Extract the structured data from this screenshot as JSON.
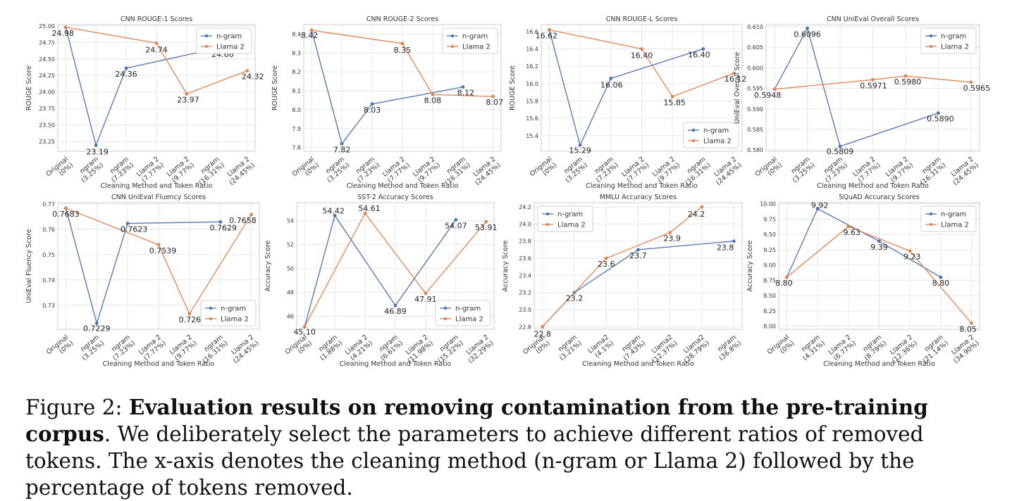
{
  "figure": {
    "caption_label": "Figure 2:",
    "caption_bold": "Evaluation results on removing contamination from the pre-training corpus",
    "caption_rest": ". We deliberately select the parameters to achieve different ratios of removed tokens. The x-axis denotes the cleaning method (n-gram or Llama 2) followed by the percentage of tokens removed."
  },
  "colors": {
    "ngram": "#4c72b0",
    "llama": "#dd8452",
    "grid": "#e6e6e6",
    "axis": "#cccccc",
    "text": "#333333"
  },
  "chart_data": [
    {
      "type": "line",
      "title": "CNN ROUGE-1 Scores",
      "xlabel": "Cleaning Method and Token Ratio",
      "ylabel": "ROUGE Score",
      "categories": [
        "Original\n(0%)",
        "ngram\n(3.25%)",
        "ngram\n(7.23%)",
        "Llama 2\n(7.77%)",
        "Llama 2\n(9.77%)",
        "ngram\n(16.31%)",
        "Llama 2\n(24.45%)"
      ],
      "ylim": [
        23.1,
        25.02
      ],
      "yticks": [
        "23.25",
        "23.50",
        "23.75",
        "24.00",
        "24.25",
        "24.50",
        "24.75",
        "25.00"
      ],
      "legend": "top-right",
      "series": [
        {
          "name": "n-gram",
          "points": [
            [
              0,
              24.98
            ],
            [
              1,
              23.19
            ],
            [
              2,
              24.36
            ],
            [
              5,
              24.66
            ]
          ]
        },
        {
          "name": "Llama 2",
          "points": [
            [
              0,
              24.98
            ],
            [
              3,
              24.74
            ],
            [
              4,
              23.97
            ],
            [
              6,
              24.32
            ]
          ]
        }
      ],
      "annotations": [
        {
          "x": 0,
          "y": 24.98,
          "text": "24.98"
        },
        {
          "x": 1,
          "y": 23.19,
          "text": "23.19"
        },
        {
          "x": 2,
          "y": 24.36,
          "text": "24.36"
        },
        {
          "x": 3,
          "y": 24.74,
          "text": "24.74"
        },
        {
          "x": 4,
          "y": 23.97,
          "text": "23.97"
        },
        {
          "x": 5,
          "y": 24.66,
          "text": "24.66"
        },
        {
          "x": 6,
          "y": 24.32,
          "text": "24.32"
        }
      ]
    },
    {
      "type": "line",
      "title": "CNN ROUGE-2 Scores",
      "xlabel": "Cleaning Method and Token Ratio",
      "ylabel": "ROUGE Score",
      "categories": [
        "Original\n(0%)",
        "ngram\n(3.25%)",
        "ngram\n(7.23%)",
        "Llama 2\n(7.77%)",
        "Llama 2\n(9.77%)",
        "ngram\n(16.31%)",
        "Llama 2\n(24.45%)"
      ],
      "ylim": [
        7.78,
        8.45
      ],
      "yticks": [
        "7.8",
        "7.9",
        "8.0",
        "8.1",
        "8.2",
        "8.3",
        "8.4"
      ],
      "legend": "top-right",
      "series": [
        {
          "name": "n-gram",
          "points": [
            [
              0,
              8.42
            ],
            [
              1,
              7.82
            ],
            [
              2,
              8.03
            ],
            [
              5,
              8.12
            ]
          ]
        },
        {
          "name": "Llama 2",
          "points": [
            [
              0,
              8.42
            ],
            [
              3,
              8.35
            ],
            [
              4,
              8.08
            ],
            [
              6,
              8.07
            ]
          ]
        }
      ],
      "annotations": [
        {
          "x": 0,
          "y": 8.42,
          "text": "8.42"
        },
        {
          "x": 1,
          "y": 7.82,
          "text": "7.82"
        },
        {
          "x": 2,
          "y": 8.03,
          "text": "8.03"
        },
        {
          "x": 3,
          "y": 8.35,
          "text": "8.35"
        },
        {
          "x": 4,
          "y": 8.08,
          "text": "8.08"
        },
        {
          "x": 5,
          "y": 8.12,
          "text": "8.12"
        },
        {
          "x": 6,
          "y": 8.07,
          "text": "8.07"
        }
      ]
    },
    {
      "type": "line",
      "title": "CNN ROUGE-L Scores",
      "xlabel": "Cleaning Method and Token Ratio",
      "ylabel": "ROUGE Score",
      "categories": [
        "Original\n(0%)",
        "ngram\n(3.25%)",
        "ngram\n(7.23%)",
        "Llama 2\n(7.77%)",
        "Llama 2\n(9.77%)",
        "ngram\n(16.31%)",
        "Llama 2\n(24.45%)"
      ],
      "ylim": [
        15.22,
        16.68
      ],
      "yticks": [
        "15.4",
        "15.6",
        "15.8",
        "16.0",
        "16.2",
        "16.4",
        "16.6"
      ],
      "legend": "bottom-right",
      "series": [
        {
          "name": "n-gram",
          "points": [
            [
              0,
              16.62
            ],
            [
              1,
              15.29
            ],
            [
              2,
              16.06
            ],
            [
              5,
              16.4
            ]
          ]
        },
        {
          "name": "Llama 2",
          "points": [
            [
              0,
              16.62
            ],
            [
              3,
              16.4
            ],
            [
              4,
              15.85
            ],
            [
              6,
              16.12
            ]
          ]
        }
      ],
      "annotations": [
        {
          "x": 0,
          "y": 16.62,
          "text": "16.62"
        },
        {
          "x": 1,
          "y": 15.29,
          "text": "15.29"
        },
        {
          "x": 2,
          "y": 16.06,
          "text": "16.06"
        },
        {
          "x": 3,
          "y": 16.4,
          "text": "16.40"
        },
        {
          "x": 4,
          "y": 15.85,
          "text": "15.85"
        },
        {
          "x": 5,
          "y": 16.4,
          "text": "16.40"
        },
        {
          "x": 6,
          "y": 16.12,
          "text": "16.12"
        }
      ]
    },
    {
      "type": "line",
      "title": "CNN UniEval Overall Scores",
      "xlabel": "Cleaning Method and Token Ratio",
      "ylabel": "UniEval Overall Score",
      "categories": [
        "Original\n(0%)",
        "ngram\n(3.25%)",
        "ngram\n(7.23%)",
        "Llama 2\n(7.77%)",
        "Llama 2\n(9.77%)",
        "ngram\n(16.31%)",
        "Llama 2\n(24.45%)"
      ],
      "ylim": [
        0.5797,
        0.6105
      ],
      "yticks": [
        "0.580",
        "0.585",
        "0.590",
        "0.595",
        "0.600",
        "0.605",
        "0.610"
      ],
      "legend": "top-right",
      "series": [
        {
          "name": "n-gram",
          "points": [
            [
              0,
              0.5948
            ],
            [
              1,
              0.6096
            ],
            [
              2,
              0.5809
            ],
            [
              5,
              0.589
            ]
          ]
        },
        {
          "name": "Llama 2",
          "points": [
            [
              0,
              0.5948
            ],
            [
              3,
              0.5971
            ],
            [
              4,
              0.598
            ],
            [
              6,
              0.5965
            ]
          ]
        }
      ],
      "annotations": [
        {
          "x": 0,
          "y": 0.5948,
          "text": "0.5948"
        },
        {
          "x": 1,
          "y": 0.6096,
          "text": "0.6096"
        },
        {
          "x": 2,
          "y": 0.5809,
          "text": "0.5809"
        },
        {
          "x": 3,
          "y": 0.5971,
          "text": "0.5971"
        },
        {
          "x": 4,
          "y": 0.598,
          "text": "0.5980"
        },
        {
          "x": 5,
          "y": 0.589,
          "text": "0.5890"
        },
        {
          "x": 6,
          "y": 0.5965,
          "text": "0.5965"
        }
      ]
    },
    {
      "type": "line",
      "title": "CNN UniEval Fluency Scores",
      "xlabel": "Cleaning Method and Token Ratio",
      "ylabel": "UniEval Fluency Score",
      "categories": [
        "Original\n(0%)",
        "ngram\n(3.25%)",
        "ngram\n(7.23%)",
        "Llama 2\n(7.77%)",
        "Llama 2\n(9.77%)",
        "ngram\n(16.31%)",
        "Llama 2\n(24.45%)"
      ],
      "ylim": [
        0.7205,
        0.7705
      ],
      "yticks": [
        "0.73",
        "0.74",
        "0.75",
        "0.76",
        "0.77"
      ],
      "legend": "bottom-right",
      "series": [
        {
          "name": "n-gram",
          "points": [
            [
              0,
              0.7683
            ],
            [
              1,
              0.7229
            ],
            [
              2,
              0.7623
            ],
            [
              5,
              0.7629
            ]
          ]
        },
        {
          "name": "Llama 2",
          "points": [
            [
              0,
              0.7683
            ],
            [
              3,
              0.7539
            ],
            [
              4,
              0.7266
            ],
            [
              6,
              0.7658
            ]
          ]
        }
      ],
      "annotations": [
        {
          "x": 0,
          "y": 0.7683,
          "text": "0.7683"
        },
        {
          "x": 1,
          "y": 0.7229,
          "text": "0.7229"
        },
        {
          "x": 2,
          "y": 0.7623,
          "text": "0.7623"
        },
        {
          "x": 3,
          "y": 0.7539,
          "text": "0.7539"
        },
        {
          "x": 4,
          "y": 0.7266,
          "text": "0.7266"
        },
        {
          "x": 5,
          "y": 0.7629,
          "text": "0.7629"
        },
        {
          "x": 6,
          "y": 0.7658,
          "text": "0.7658"
        }
      ]
    },
    {
      "type": "line",
      "title": "SST-2 Accuracy Scores",
      "xlabel": "Cleaning Method and Token Ratio",
      "ylabel": "Accuracy Score",
      "categories": [
        "Original\n(0%)",
        "ngram\n(1.88%)",
        "Llama 2\n(4.21%)",
        "ngram\n(6.61%)",
        "Llama 2\n(11.98%)",
        "ngram\n(15.22%)",
        "Llama 2\n(32.29%)"
      ],
      "ylim": [
        44.9,
        55.5
      ],
      "yticks": [
        "46",
        "48",
        "50",
        "52",
        "54"
      ],
      "legend": "bottom-right",
      "series": [
        {
          "name": "n-gram",
          "points": [
            [
              0,
              45.1
            ],
            [
              1,
              54.42
            ],
            [
              3,
              46.89
            ],
            [
              5,
              54.07
            ]
          ]
        },
        {
          "name": "Llama 2",
          "points": [
            [
              0,
              45.1
            ],
            [
              2,
              54.61
            ],
            [
              4,
              47.91
            ],
            [
              6,
              53.91
            ]
          ]
        }
      ],
      "annotations": [
        {
          "x": 0,
          "y": 45.1,
          "text": "45.10"
        },
        {
          "x": 1,
          "y": 54.42,
          "text": "54.42"
        },
        {
          "x": 2,
          "y": 54.61,
          "text": "54.61"
        },
        {
          "x": 3,
          "y": 46.89,
          "text": "46.89"
        },
        {
          "x": 4,
          "y": 47.91,
          "text": "47.91"
        },
        {
          "x": 5,
          "y": 54.07,
          "text": "54.07"
        },
        {
          "x": 6,
          "y": 53.91,
          "text": "53.91"
        }
      ]
    },
    {
      "type": "line",
      "title": "MMLU Accuracy Scores",
      "xlabel": "Cleaning Method and Token Ratio",
      "ylabel": "Accuracy Score",
      "categories": [
        "Original\n(0%)",
        "ngram\n(3.21%)",
        "Llama2\n(4.1%)",
        "ngram\n(7.43%)",
        "Llama2\n(12.37%)",
        "Llama2\n(28.79%)",
        "ngram\n(36.8%)"
      ],
      "ylim": [
        22.77,
        24.25
      ],
      "yticks": [
        "22.8",
        "23.0",
        "23.2",
        "23.4",
        "23.6",
        "23.8",
        "24.0",
        "24.2"
      ],
      "legend": "top-left",
      "series": [
        {
          "name": "n-gram",
          "points": [
            [
              0,
              22.8
            ],
            [
              1,
              23.2
            ],
            [
              3,
              23.7
            ],
            [
              6,
              23.8
            ]
          ]
        },
        {
          "name": "Llama 2",
          "points": [
            [
              0,
              22.8
            ],
            [
              2,
              23.6
            ],
            [
              4,
              23.9
            ],
            [
              5,
              24.2
            ]
          ]
        }
      ],
      "annotations": [
        {
          "x": 0,
          "y": 22.8,
          "text": "22.8"
        },
        {
          "x": 1,
          "y": 23.2,
          "text": "23.2"
        },
        {
          "x": 2,
          "y": 23.6,
          "text": "23.6"
        },
        {
          "x": 3,
          "y": 23.7,
          "text": "23.7"
        },
        {
          "x": 4,
          "y": 23.9,
          "text": "23.9"
        },
        {
          "x": 5,
          "y": 24.2,
          "text": "24.2"
        },
        {
          "x": 6,
          "y": 23.8,
          "text": "23.8"
        }
      ]
    },
    {
      "type": "line",
      "title": "SQuAD Accuracy Scores",
      "xlabel": "Cleaning Method and Token Ratio",
      "ylabel": "Accuracy Score",
      "categories": [
        "Original\n(0%)",
        "ngram\n(4.31%)",
        "Llama 2\n(6.77%)",
        "ngram\n(8.79%)",
        "Llama 2\n(12.36%)",
        "ngram\n(21.14%)",
        "Llama 2\n(34.90%)"
      ],
      "ylim": [
        7.95,
        10.02
      ],
      "yticks": [
        "8.00",
        "8.25",
        "8.50",
        "8.75",
        "9.00",
        "9.25",
        "9.50",
        "9.75",
        "10.00"
      ],
      "legend": "top-right",
      "series": [
        {
          "name": "n-gram",
          "points": [
            [
              0,
              8.8
            ],
            [
              1,
              9.92
            ],
            [
              3,
              9.39
            ],
            [
              5,
              8.8
            ]
          ]
        },
        {
          "name": "Llama 2",
          "points": [
            [
              0,
              8.8
            ],
            [
              2,
              9.63
            ],
            [
              4,
              9.23
            ],
            [
              6,
              8.05
            ]
          ]
        }
      ],
      "annotations": [
        {
          "x": 0,
          "y": 8.8,
          "text": "8.80"
        },
        {
          "x": 1,
          "y": 9.92,
          "text": "9.92"
        },
        {
          "x": 2,
          "y": 9.63,
          "text": "9.63"
        },
        {
          "x": 3,
          "y": 9.39,
          "text": "9.39"
        },
        {
          "x": 4,
          "y": 9.23,
          "text": "9.23"
        },
        {
          "x": 5,
          "y": 8.8,
          "text": "8.80"
        },
        {
          "x": 6,
          "y": 8.05,
          "text": "8.05"
        }
      ]
    }
  ]
}
